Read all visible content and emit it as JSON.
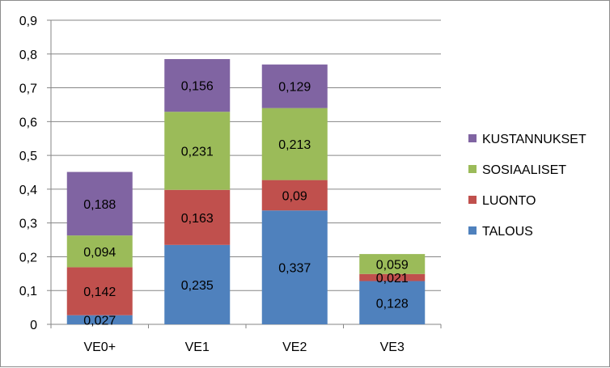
{
  "chart_data": {
    "type": "bar",
    "stacked": true,
    "categories": [
      "VE0+",
      "VE1",
      "VE2",
      "VE3"
    ],
    "series": [
      {
        "name": "TALOUS",
        "values": [
          0.027,
          0.235,
          0.337,
          0.128
        ],
        "labels": [
          "0,027",
          "0,235",
          "0,337",
          "0,128"
        ],
        "color": "#4f81bd"
      },
      {
        "name": "LUONTO",
        "values": [
          0.142,
          0.163,
          0.09,
          0.021
        ],
        "labels": [
          "0,142",
          "0,163",
          "0,09",
          "0,021"
        ],
        "color": "#c0504d"
      },
      {
        "name": "SOSIAALISET",
        "values": [
          0.094,
          0.231,
          0.213,
          0.059
        ],
        "labels": [
          "0,094",
          "0,231",
          "0,213",
          "0,059"
        ],
        "color": "#9bbb59"
      },
      {
        "name": "KUSTANNUKSET",
        "values": [
          0.188,
          0.156,
          0.129,
          null
        ],
        "labels": [
          "0,188",
          "0,156",
          "0,129",
          ""
        ],
        "color": "#8064a2"
      }
    ],
    "yticks": [
      0,
      0.1,
      0.2,
      0.3,
      0.4,
      0.5,
      0.6,
      0.7,
      0.8,
      0.9
    ],
    "ytick_labels": [
      "0",
      "0,1",
      "0,2",
      "0,3",
      "0,4",
      "0,5",
      "0,6",
      "0,7",
      "0,8",
      "0,9"
    ],
    "ylim": [
      0,
      0.9
    ],
    "grid": true,
    "legend_position": "right",
    "legend_order": [
      "KUSTANNUKSET",
      "SOSIAALISET",
      "LUONTO",
      "TALOUS"
    ],
    "title": "",
    "xlabel": "",
    "ylabel": ""
  }
}
